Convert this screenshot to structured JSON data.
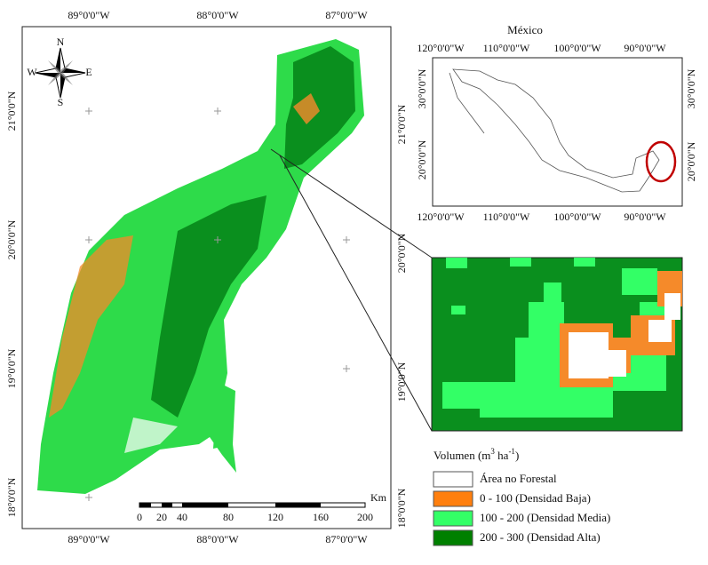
{
  "main_map": {
    "top_labels": [
      "89°0'0\"W",
      "88°0'0\"W",
      "87°0'0\"W"
    ],
    "bottom_labels": [
      "89°0'0\"W",
      "88°0'0\"W",
      "87°0'0\"W"
    ],
    "left_labels": [
      "21°0'0\"N",
      "20°0'0\"N",
      "19°0'0\"N",
      "18°0'0\"N"
    ],
    "right_labels": [
      "21°0'0\"N",
      "20°0'0\"N",
      "19°0'0\"N",
      "18°0'0\"N"
    ],
    "compass": {
      "north": "N",
      "east": "E",
      "south": "S",
      "west": "W"
    },
    "scale_bar": {
      "unit": "Km",
      "ticks": [
        0,
        20,
        40,
        80,
        120,
        160,
        200
      ]
    }
  },
  "inset_map": {
    "title": "México",
    "top_labels": [
      "120°0'0\"W",
      "110°0'0\"W",
      "100°0'0\"W",
      "90°0'0\"W"
    ],
    "bottom_labels": [
      "120°0'0\"W",
      "110°0'0\"W",
      "100°0'0\"W",
      "90°0'0\"W"
    ],
    "left_labels": [
      "30°0'0\"N",
      "20°0'0\"N"
    ],
    "right_labels": [
      "30°0'0\"N",
      "20°0'0\"N"
    ]
  },
  "legend": {
    "title": {
      "text": "Volumen (m",
      "sup1": "3",
      "mid": " ha",
      "sup2": "-1",
      "end": ")"
    },
    "items": [
      "Área no Forestal",
      "0  - 100 (Densidad Baja)",
      "100 - 200 (Densidad Media)",
      "200 - 300 (Densidad Alta)"
    ]
  }
}
